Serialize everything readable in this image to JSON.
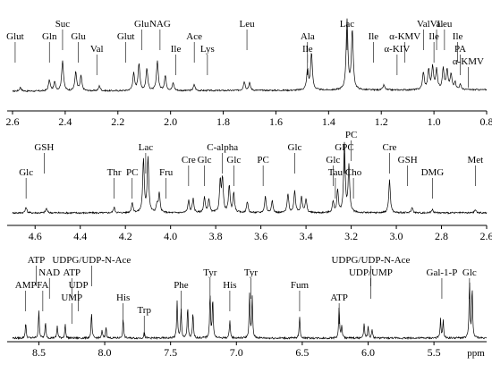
{
  "chart_data": [
    {
      "type": "line",
      "xlabel": "",
      "ylabel": "",
      "xlim": [
        2.6,
        0.8
      ],
      "ticks": [
        "2.6",
        "2.4",
        "2.2",
        "2.0",
        "1.8",
        "1.6",
        "1.4",
        "1.2",
        "1.0",
        "0.8"
      ],
      "peaks": [
        {
          "ppm": 2.57,
          "h": 0.08
        },
        {
          "ppm": 2.46,
          "h": 0.22
        },
        {
          "ppm": 2.44,
          "h": 0.18
        },
        {
          "ppm": 2.41,
          "h": 0.62
        },
        {
          "ppm": 2.36,
          "h": 0.38
        },
        {
          "ppm": 2.34,
          "h": 0.3
        },
        {
          "ppm": 2.27,
          "h": 0.1
        },
        {
          "ppm": 2.14,
          "h": 0.35
        },
        {
          "ppm": 2.12,
          "h": 0.55
        },
        {
          "ppm": 2.09,
          "h": 0.45
        },
        {
          "ppm": 2.05,
          "h": 0.6
        },
        {
          "ppm": 2.02,
          "h": 0.3
        },
        {
          "ppm": 1.99,
          "h": 0.15
        },
        {
          "ppm": 1.91,
          "h": 0.12
        },
        {
          "ppm": 1.72,
          "h": 0.18
        },
        {
          "ppm": 1.7,
          "h": 0.15
        },
        {
          "ppm": 1.48,
          "h": 0.4
        },
        {
          "ppm": 1.465,
          "h": 0.75
        },
        {
          "ppm": 1.33,
          "h": 1.4
        },
        {
          "ppm": 1.31,
          "h": 1.2
        },
        {
          "ppm": 1.19,
          "h": 0.1
        },
        {
          "ppm": 1.04,
          "h": 0.35
        },
        {
          "ppm": 1.02,
          "h": 0.4
        },
        {
          "ppm": 1.005,
          "h": 0.45
        },
        {
          "ppm": 0.99,
          "h": 0.4
        },
        {
          "ppm": 0.965,
          "h": 0.42
        },
        {
          "ppm": 0.95,
          "h": 0.38
        },
        {
          "ppm": 0.935,
          "h": 0.3
        },
        {
          "ppm": 0.92,
          "h": 0.15
        },
        {
          "ppm": 0.9,
          "h": 0.1
        }
      ],
      "annotations": [
        {
          "text": "Glut",
          "ppm": 2.59,
          "row": 0
        },
        {
          "text": "Suc",
          "ppm": 2.41,
          "row": -1
        },
        {
          "text": "Gln",
          "ppm": 2.46,
          "row": 0
        },
        {
          "text": "Glu",
          "ppm": 2.35,
          "row": 0
        },
        {
          "text": "Val",
          "ppm": 2.28,
          "row": 1
        },
        {
          "text": "Glut",
          "ppm": 2.17,
          "row": 0
        },
        {
          "text": "Glu",
          "ppm": 2.11,
          "row": -1
        },
        {
          "text": "NAG",
          "ppm": 2.04,
          "row": -1
        },
        {
          "text": "Ile",
          "ppm": 1.98,
          "row": 1
        },
        {
          "text": "Ace",
          "ppm": 1.91,
          "row": 0
        },
        {
          "text": "Lys",
          "ppm": 1.86,
          "row": 1
        },
        {
          "text": "Leu",
          "ppm": 1.71,
          "row": -1
        },
        {
          "text": "Ala",
          "ppm": 1.48,
          "row": 0
        },
        {
          "text": "Ile",
          "ppm": 1.48,
          "row": 1
        },
        {
          "text": "Lac",
          "ppm": 1.33,
          "row": -1
        },
        {
          "text": "Ile",
          "ppm": 1.23,
          "row": 0
        },
        {
          "text": "α-KIV",
          "ppm": 1.14,
          "row": 1
        },
        {
          "text": "α-KMV",
          "ppm": 1.11,
          "row": 0
        },
        {
          "text": "Val",
          "ppm": 1.04,
          "row": -1
        },
        {
          "text": "Val",
          "ppm": 0.99,
          "row": -1
        },
        {
          "text": "Ile",
          "ppm": 1.0,
          "row": 0
        },
        {
          "text": "Leu",
          "ppm": 0.96,
          "row": -1
        },
        {
          "text": "Ile",
          "ppm": 0.91,
          "row": 0
        },
        {
          "text": "PA",
          "ppm": 0.9,
          "row": 1
        },
        {
          "text": "α-KMV",
          "ppm": 0.87,
          "row": 2
        }
      ]
    },
    {
      "type": "line",
      "xlabel": "",
      "ylabel": "",
      "xlim": [
        4.7,
        2.6
      ],
      "ticks": [
        "4.6",
        "4.4",
        "4.2",
        "4.0",
        "3.8",
        "3.6",
        "3.4",
        "3.2",
        "3.0",
        "2.8",
        "2.6"
      ],
      "peaks": [
        {
          "ppm": 4.64,
          "h": 0.1
        },
        {
          "ppm": 4.55,
          "h": 0.08
        },
        {
          "ppm": 4.25,
          "h": 0.1
        },
        {
          "ppm": 4.17,
          "h": 0.18
        },
        {
          "ppm": 4.12,
          "h": 0.95
        },
        {
          "ppm": 4.1,
          "h": 1.0
        },
        {
          "ppm": 4.06,
          "h": 0.15
        },
        {
          "ppm": 4.05,
          "h": 0.35
        },
        {
          "ppm": 3.92,
          "h": 0.22
        },
        {
          "ppm": 3.9,
          "h": 0.25
        },
        {
          "ppm": 3.85,
          "h": 0.28
        },
        {
          "ppm": 3.83,
          "h": 0.25
        },
        {
          "ppm": 3.78,
          "h": 0.55
        },
        {
          "ppm": 3.77,
          "h": 0.6
        },
        {
          "ppm": 3.74,
          "h": 0.5
        },
        {
          "ppm": 3.72,
          "h": 0.35
        },
        {
          "ppm": 3.66,
          "h": 0.2
        },
        {
          "ppm": 3.58,
          "h": 0.3
        },
        {
          "ppm": 3.55,
          "h": 0.22
        },
        {
          "ppm": 3.48,
          "h": 0.35
        },
        {
          "ppm": 3.45,
          "h": 0.4
        },
        {
          "ppm": 3.42,
          "h": 0.3
        },
        {
          "ppm": 3.4,
          "h": 0.25
        },
        {
          "ppm": 3.28,
          "h": 0.2
        },
        {
          "ppm": 3.26,
          "h": 0.4
        },
        {
          "ppm": 3.23,
          "h": 1.25
        },
        {
          "ppm": 3.21,
          "h": 0.85
        },
        {
          "ppm": 3.03,
          "h": 0.6
        },
        {
          "ppm": 2.93,
          "h": 0.1
        },
        {
          "ppm": 2.84,
          "h": 0.07
        },
        {
          "ppm": 2.65,
          "h": 0.06
        }
      ],
      "annotations": [
        {
          "text": "GSH",
          "ppm": 4.56,
          "row": -1
        },
        {
          "text": "Glc",
          "ppm": 4.64,
          "row": 1
        },
        {
          "text": "Thr",
          "ppm": 4.25,
          "row": 1
        },
        {
          "text": "Lac",
          "ppm": 4.11,
          "row": -1
        },
        {
          "text": "PC",
          "ppm": 4.17,
          "row": 1
        },
        {
          "text": "Fru",
          "ppm": 4.02,
          "row": 1
        },
        {
          "text": "Cre",
          "ppm": 3.92,
          "row": 0
        },
        {
          "text": "Glc",
          "ppm": 3.85,
          "row": 0
        },
        {
          "text": "C-alpha",
          "ppm": 3.77,
          "row": -1
        },
        {
          "text": "Glc",
          "ppm": 3.72,
          "row": 0
        },
        {
          "text": "PC",
          "ppm": 3.59,
          "row": 0
        },
        {
          "text": "Glc",
          "ppm": 3.45,
          "row": -1
        },
        {
          "text": "GPC",
          "ppm": 3.23,
          "row": -1
        },
        {
          "text": "PC",
          "ppm": 3.2,
          "row": -2
        },
        {
          "text": "Glc",
          "ppm": 3.28,
          "row": 0
        },
        {
          "text": "Tau",
          "ppm": 3.27,
          "row": 1
        },
        {
          "text": "Cho",
          "ppm": 3.19,
          "row": 1
        },
        {
          "text": "Cre",
          "ppm": 3.03,
          "row": -1
        },
        {
          "text": "GSH",
          "ppm": 2.95,
          "row": 0
        },
        {
          "text": "DMG",
          "ppm": 2.84,
          "row": 1
        },
        {
          "text": "Met",
          "ppm": 2.65,
          "row": 0
        }
      ]
    },
    {
      "type": "line",
      "xlabel": "ppm",
      "ylabel": "",
      "xlim": [
        8.7,
        5.1
      ],
      "ticks": [
        "8.5",
        "8.0",
        "7.5",
        "7.0",
        "6.5",
        "6.0",
        "5.5"
      ],
      "peaks": [
        {
          "ppm": 8.6,
          "h": 0.25
        },
        {
          "ppm": 8.5,
          "h": 0.45
        },
        {
          "ppm": 8.45,
          "h": 0.25
        },
        {
          "ppm": 8.36,
          "h": 0.2
        },
        {
          "ppm": 8.3,
          "h": 0.22
        },
        {
          "ppm": 8.1,
          "h": 0.4
        },
        {
          "ppm": 8.02,
          "h": 0.12
        },
        {
          "ppm": 7.99,
          "h": 0.18
        },
        {
          "ppm": 7.86,
          "h": 0.3
        },
        {
          "ppm": 7.7,
          "h": 0.1
        },
        {
          "ppm": 7.45,
          "h": 0.6
        },
        {
          "ppm": 7.42,
          "h": 0.45
        },
        {
          "ppm": 7.37,
          "h": 0.5
        },
        {
          "ppm": 7.33,
          "h": 0.4
        },
        {
          "ppm": 7.2,
          "h": 0.7
        },
        {
          "ppm": 7.18,
          "h": 0.65
        },
        {
          "ppm": 7.05,
          "h": 0.3
        },
        {
          "ppm": 6.9,
          "h": 0.7
        },
        {
          "ppm": 6.88,
          "h": 0.65
        },
        {
          "ppm": 6.52,
          "h": 0.35
        },
        {
          "ppm": 6.22,
          "h": 0.5
        },
        {
          "ppm": 6.2,
          "h": 0.2
        },
        {
          "ppm": 6.03,
          "h": 0.25
        },
        {
          "ppm": 6.0,
          "h": 0.18
        },
        {
          "ppm": 5.97,
          "h": 0.15
        },
        {
          "ppm": 5.45,
          "h": 0.3
        },
        {
          "ppm": 5.43,
          "h": 0.28
        },
        {
          "ppm": 5.23,
          "h": 0.9
        },
        {
          "ppm": 5.21,
          "h": 0.8
        }
      ],
      "annotations": [
        {
          "text": "AMP",
          "ppm": 8.6,
          "row": 0
        },
        {
          "text": "ATP",
          "ppm": 8.52,
          "row": -2
        },
        {
          "text": "NAD",
          "ppm": 8.42,
          "row": -1
        },
        {
          "text": "FA",
          "ppm": 8.47,
          "row": 0
        },
        {
          "text": "UDPG/UDP-N-Ace",
          "ppm": 8.1,
          "row": -2
        },
        {
          "text": "ATP",
          "ppm": 8.25,
          "row": -1
        },
        {
          "text": "UDP",
          "ppm": 8.2,
          "row": 0
        },
        {
          "text": "UMP",
          "ppm": 8.25,
          "row": 1
        },
        {
          "text": "His",
          "ppm": 7.86,
          "row": 1
        },
        {
          "text": "Trp",
          "ppm": 7.7,
          "row": 2
        },
        {
          "text": "Phe",
          "ppm": 7.42,
          "row": 0
        },
        {
          "text": "Tyr",
          "ppm": 7.2,
          "row": -1
        },
        {
          "text": "His",
          "ppm": 7.05,
          "row": 0
        },
        {
          "text": "Tyr",
          "ppm": 6.89,
          "row": -1
        },
        {
          "text": "UDPG/UDP-N-Ace",
          "ppm": 5.98,
          "row": -2
        },
        {
          "text": "Fum",
          "ppm": 6.52,
          "row": 0
        },
        {
          "text": "UDP/UMP",
          "ppm": 5.98,
          "row": -1
        },
        {
          "text": "ATP",
          "ppm": 6.22,
          "row": 1
        },
        {
          "text": "Gal-1-P",
          "ppm": 5.44,
          "row": -1
        },
        {
          "text": "Glc",
          "ppm": 5.23,
          "row": -1
        }
      ]
    }
  ]
}
